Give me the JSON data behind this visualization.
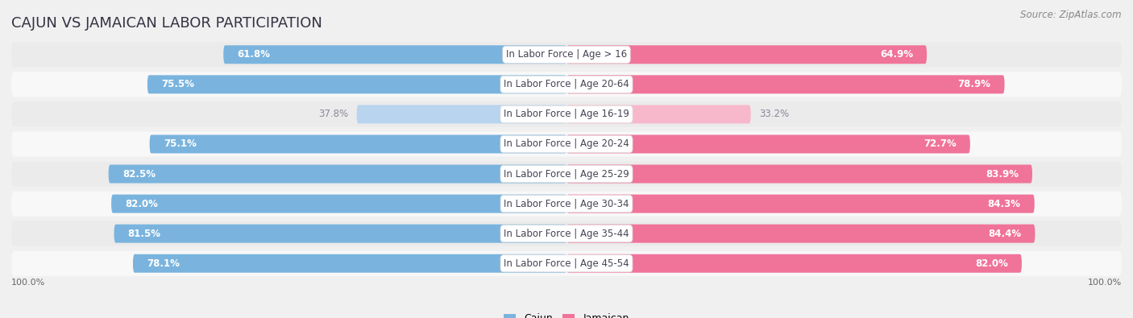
{
  "title": "CAJUN VS JAMAICAN LABOR PARTICIPATION",
  "source": "Source: ZipAtlas.com",
  "categories": [
    "In Labor Force | Age > 16",
    "In Labor Force | Age 20-64",
    "In Labor Force | Age 16-19",
    "In Labor Force | Age 20-24",
    "In Labor Force | Age 25-29",
    "In Labor Force | Age 30-34",
    "In Labor Force | Age 35-44",
    "In Labor Force | Age 45-54"
  ],
  "cajun_values": [
    61.8,
    75.5,
    37.8,
    75.1,
    82.5,
    82.0,
    81.5,
    78.1
  ],
  "jamaican_values": [
    64.9,
    78.9,
    33.2,
    72.7,
    83.9,
    84.3,
    84.4,
    82.0
  ],
  "cajun_color": "#7ab4de",
  "jamaican_color": "#f0739a",
  "cajun_color_light": "#b8d4ee",
  "jamaican_color_light": "#f8b8cc",
  "background_color": "#f0f0f0",
  "row_bg_light": "#f8f8f8",
  "row_bg_dark": "#ebebeb",
  "title_color": "#333344",
  "source_color": "#888888",
  "label_color": "#555566",
  "value_color_white": "#ffffff",
  "value_color_dark": "#888899",
  "center_label_color": "#444455",
  "title_fontsize": 13,
  "source_fontsize": 8.5,
  "value_fontsize": 8.5,
  "cat_fontsize": 8.5,
  "legend_fontsize": 9,
  "axis_label_fontsize": 8,
  "max_val": 100.0,
  "legend_labels": [
    "Cajun",
    "Jamaican"
  ],
  "axis_bottom_label": "100.0%"
}
